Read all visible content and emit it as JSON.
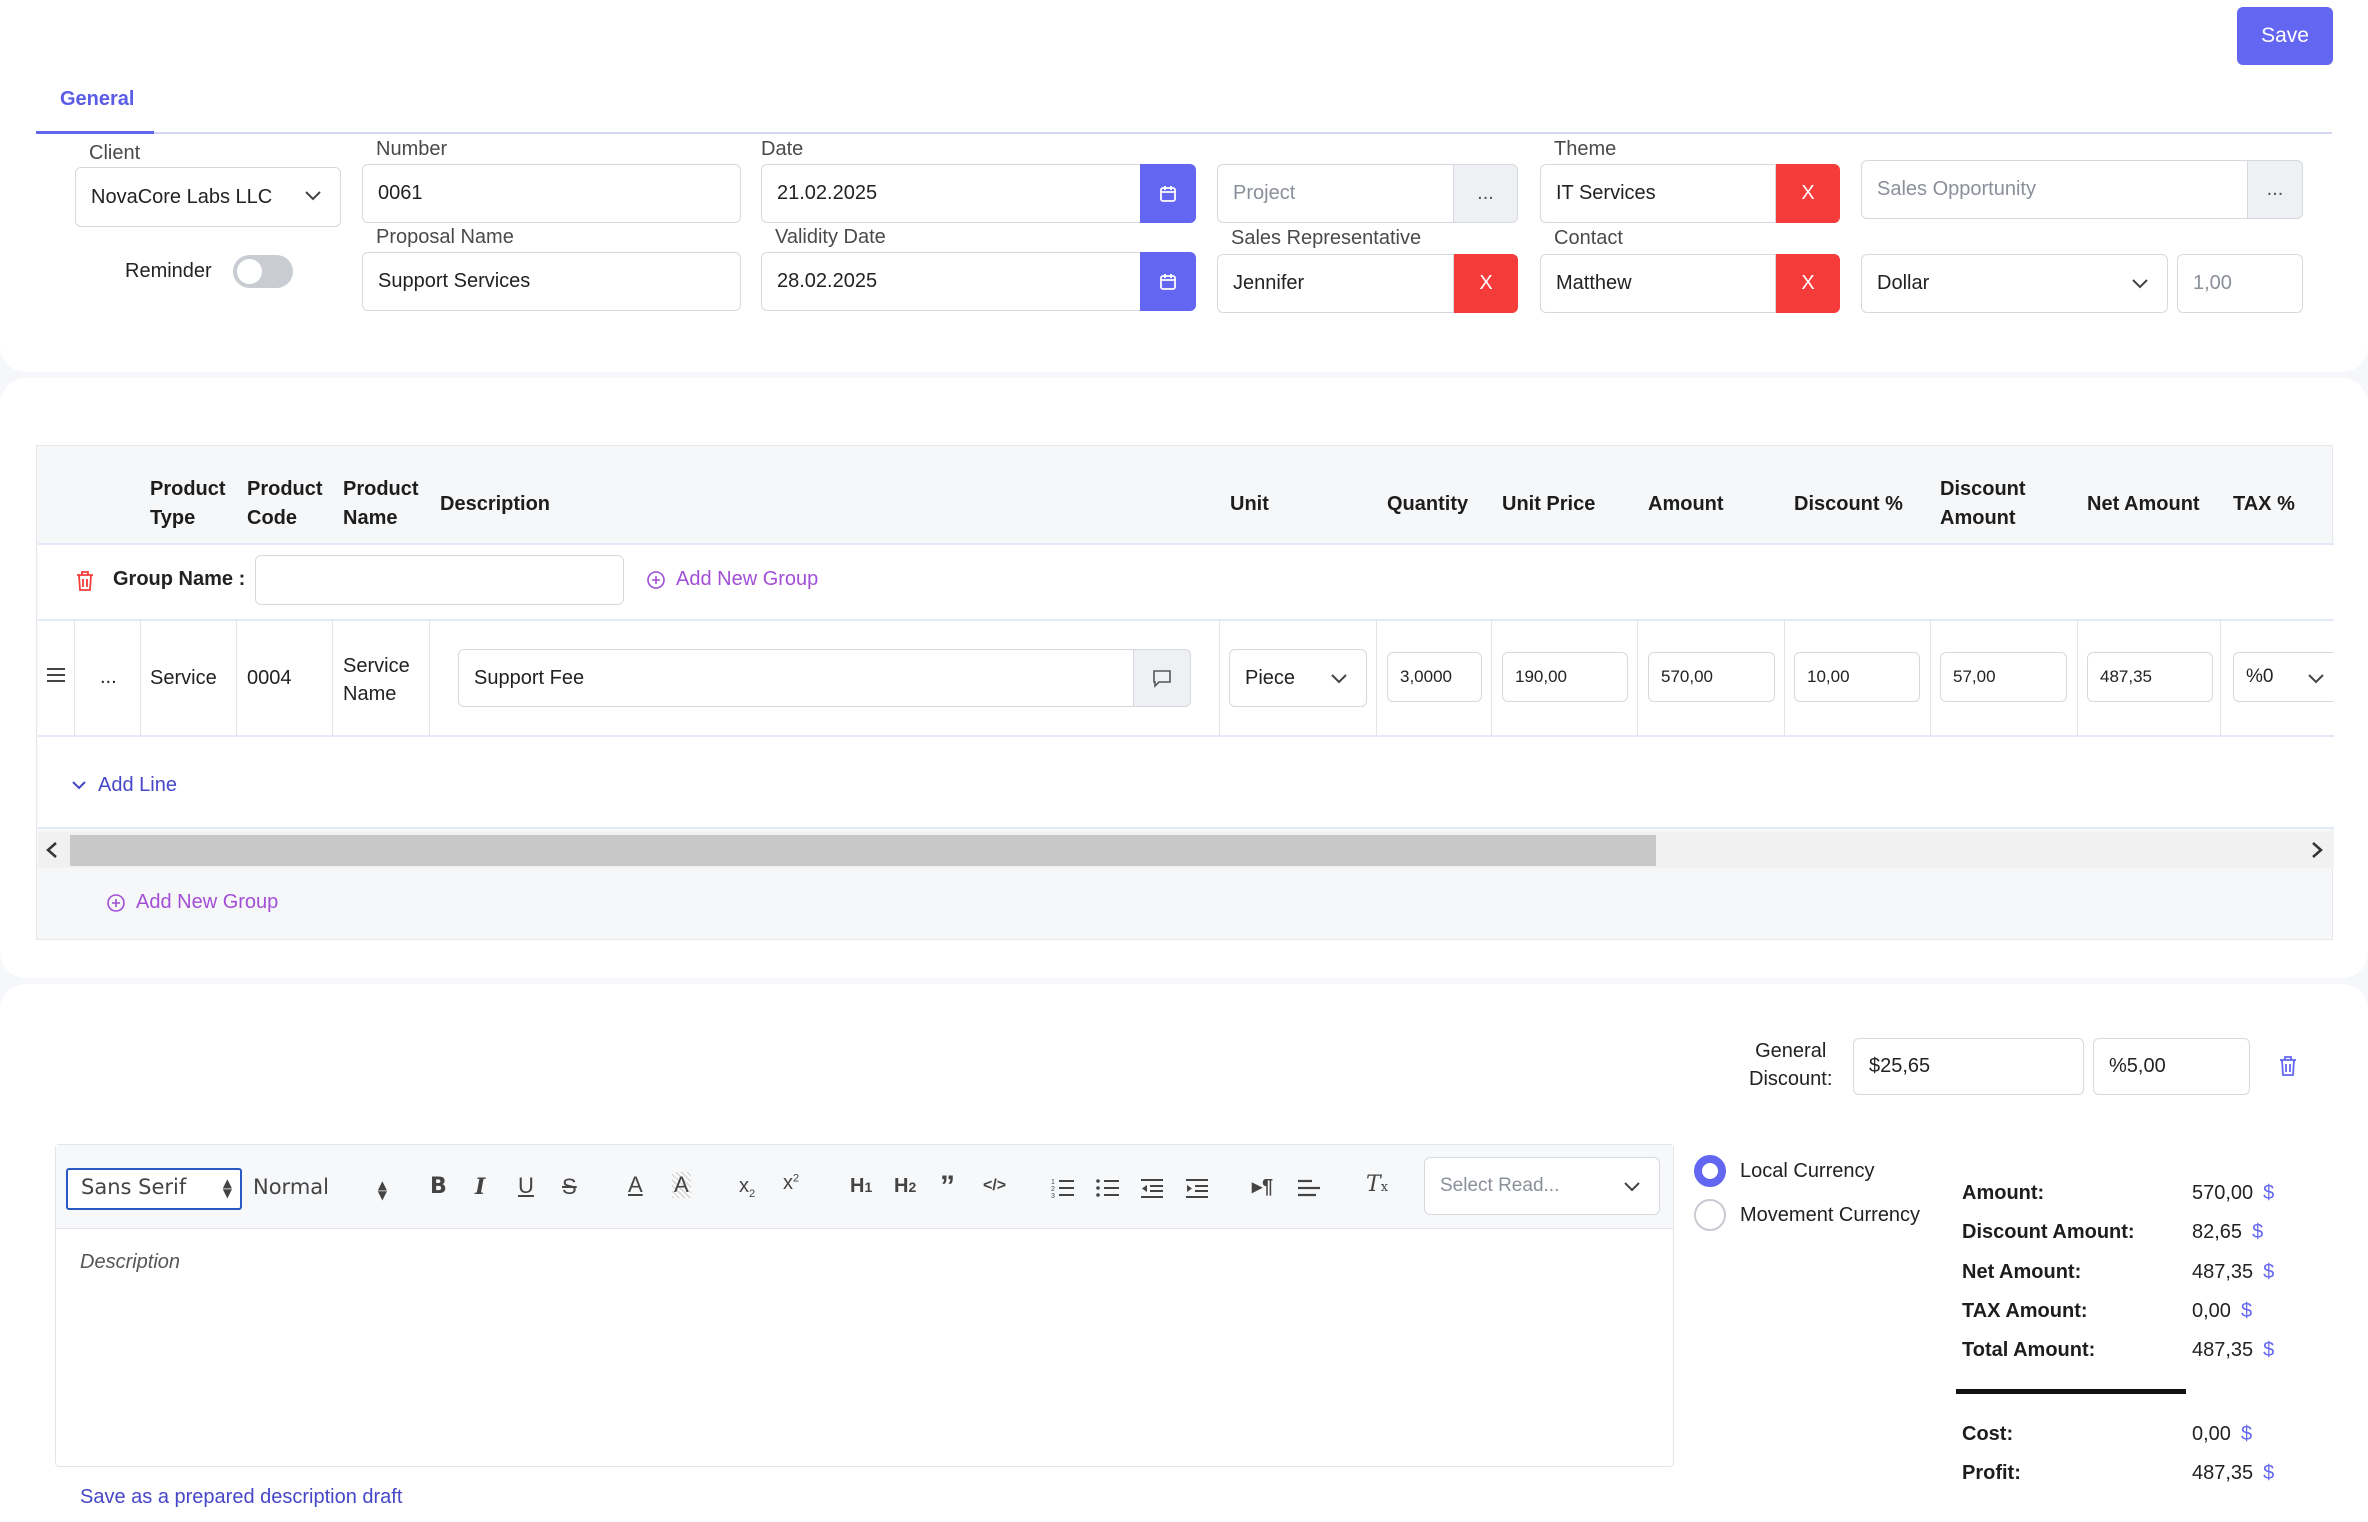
{
  "header": {
    "save_label": "Save",
    "tab_general": "General"
  },
  "form": {
    "client_label": "Client",
    "client_value": "NovaCore Labs LLC",
    "reminder_label": "Reminder",
    "number_label": "Number",
    "number_value": "0061",
    "proposal_name_label": "Proposal Name",
    "proposal_name_value": "Support Services",
    "date_label": "Date",
    "date_value": "21.02.2025",
    "validity_label": "Validity Date",
    "validity_value": "28.02.2025",
    "project_placeholder": "Project",
    "dots": "...",
    "sales_rep_label": "Sales Representative",
    "sales_rep_value": "Jennifer",
    "theme_label": "Theme",
    "theme_value": "IT Services",
    "contact_label": "Contact",
    "contact_value": "Matthew",
    "remove_x": "X",
    "sales_opportunity_placeholder": "Sales Opportunity",
    "currency_value": "Dollar",
    "rate_value": "1,00"
  },
  "table": {
    "headers": {
      "product_type": [
        "Product",
        "Type"
      ],
      "product_code": [
        "Product",
        "Code"
      ],
      "product_name": [
        "Product",
        "Name"
      ],
      "description": "Description",
      "unit": "Unit",
      "quantity": "Quantity",
      "unit_price": "Unit Price",
      "amount": "Amount",
      "discount_pct": "Discount %",
      "discount_amount": [
        "Discount",
        "Amount"
      ],
      "net_amount": "Net Amount",
      "tax_pct": "TAX %"
    },
    "group_name_label": "Group Name :",
    "add_new_group": "Add New Group",
    "row": {
      "dots": "...",
      "type": "Service",
      "code": "0004",
      "name": [
        "Service",
        "Name"
      ],
      "description": "Support Fee",
      "unit": "Piece",
      "quantity": "3,0000",
      "unit_price": "190,00",
      "amount": "570,00",
      "discount_pct": "10,00",
      "discount_amount": "57,00",
      "net_amount": "487,35",
      "tax": "%0"
    },
    "add_line": "Add Line"
  },
  "general_discount": {
    "label": [
      "General",
      "Discount:"
    ],
    "amount": "$25,65",
    "percent": "%5,00"
  },
  "editor": {
    "font": "Sans Serif",
    "size": "Normal",
    "ready_placeholder": "Select Read...",
    "placeholder": "Description",
    "save_draft": "Save as a prepared description draft"
  },
  "currency_options": {
    "local": "Local Currency",
    "movement": "Movement Currency"
  },
  "totals": {
    "currency_symbol": "$",
    "amount_label": "Amount:",
    "amount": "570,00",
    "discount_label": "Discount Amount:",
    "discount": "82,65",
    "net_label": "Net Amount:",
    "net": "487,35",
    "tax_label": "TAX Amount:",
    "tax": "0,00",
    "total_label": "Total Amount:",
    "total": "487,35",
    "cost_label": "Cost:",
    "cost": "0,00",
    "profit_label": "Profit:",
    "profit": "487,35"
  },
  "colors": {
    "accent": "#6366f1",
    "danger": "#f63b3b",
    "link_purple": "#a24ed6"
  }
}
